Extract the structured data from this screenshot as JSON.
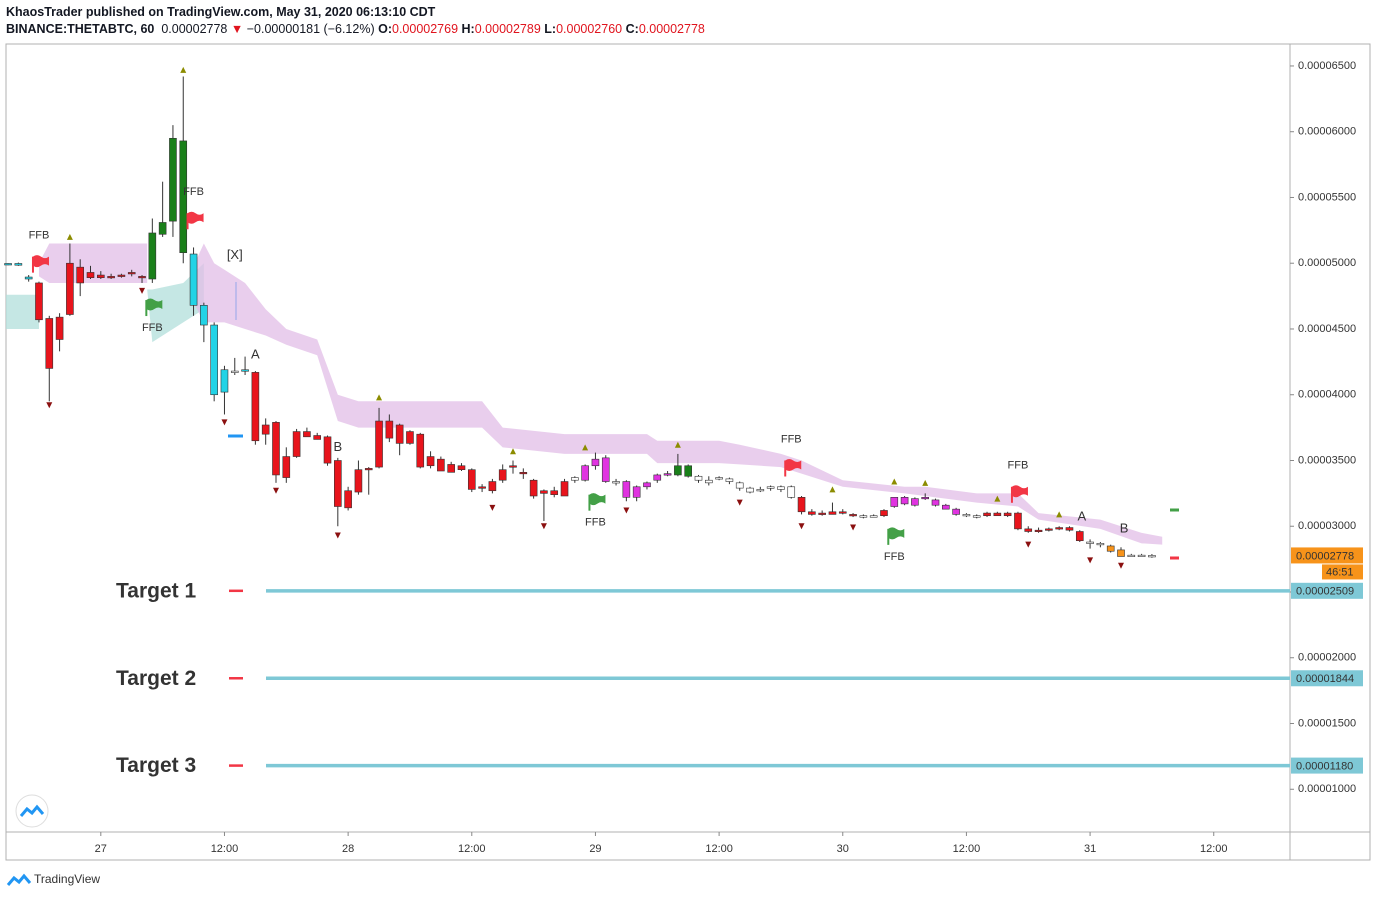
{
  "chart_data": {
    "type": "candlestick",
    "title": "KhaosTrader published on TradingView.com, May 31, 2020 06:13:10 CDT",
    "symbol": "BINANCE:THETABTC, 60",
    "last": 2.778e-05,
    "change_arrow": "▼",
    "change": "−0.00000181 (−6.12%)",
    "legend_ohlc": [
      {
        "label": "O:",
        "value": 2.769e-05
      },
      {
        "label": "H:",
        "value": 2.789e-05
      },
      {
        "label": "L:",
        "value": 2.76e-05,
        "value_label": "0.00002760"
      },
      {
        "label": "C:",
        "value": 2.778e-05
      }
    ],
    "countdown": "46:51",
    "last_color": "#f7931a",
    "brand": "TradingView",
    "xlim": [
      -9.2,
      115.4
    ],
    "xticks": [
      {
        "value": 0,
        "label": "27"
      },
      {
        "value": 12,
        "label": "12:00"
      },
      {
        "value": 24,
        "label": "28"
      },
      {
        "value": 36,
        "label": "12:00"
      },
      {
        "value": 48,
        "label": "29"
      },
      {
        "value": 60,
        "label": "12:00"
      },
      {
        "value": 72,
        "label": "30"
      },
      {
        "value": 84,
        "label": "12:00"
      },
      {
        "value": 96,
        "label": "31"
      },
      {
        "value": 108,
        "label": "12:00"
      }
    ],
    "ylim": [
      6.75e-06,
      6.667e-05
    ],
    "yticks": [
      {
        "value": 6.5e-05,
        "label": "0.00006500"
      },
      {
        "value": 6e-05,
        "label": "0.00006000"
      },
      {
        "value": 5.5e-05,
        "label": "0.00005500"
      },
      {
        "value": 5e-05,
        "label": "0.00005000"
      },
      {
        "value": 4.5e-05,
        "label": "0.00004500"
      },
      {
        "value": 4e-05,
        "label": "0.00004000"
      },
      {
        "value": 3.5e-05,
        "label": "0.00003500"
      },
      {
        "value": 3e-05,
        "label": "0.00003000"
      },
      {
        "value": 2.5e-05,
        "label": "0.00002500"
      },
      {
        "value": 2e-05,
        "label": "0.00002000"
      },
      {
        "value": 1.5e-05,
        "label": "0.00001500"
      },
      {
        "value": 1e-05,
        "label": "0.00001000"
      }
    ],
    "x": [
      -9,
      -8,
      -7,
      -6,
      -5,
      -4,
      -3,
      -2,
      -1,
      0,
      1,
      2,
      3,
      4,
      5,
      6,
      7,
      8,
      9,
      10,
      11,
      12,
      13,
      14,
      15,
      16,
      17,
      18,
      19,
      20,
      21,
      22,
      23,
      24,
      25,
      26,
      27,
      28,
      29,
      30,
      31,
      32,
      33,
      34,
      35,
      36,
      37,
      38,
      39,
      40,
      41,
      42,
      43,
      44,
      45,
      46,
      47,
      48,
      49,
      50,
      51,
      52,
      53,
      54,
      55,
      56,
      57,
      58,
      59,
      60,
      61,
      62,
      63,
      64,
      65,
      66,
      67,
      68,
      69,
      70,
      71,
      72,
      73,
      74,
      75,
      76,
      77,
      78,
      79,
      80,
      81,
      82,
      83,
      84,
      85,
      86,
      87,
      88,
      89,
      90,
      91,
      92,
      93,
      94,
      95,
      96,
      97,
      98,
      99,
      100,
      101,
      102
    ],
    "open": [
      4.99e-05,
      4.985e-05,
      4.88e-05,
      4.85e-05,
      4.58e-05,
      4.59e-05,
      5e-05,
      4.97e-05,
      4.93e-05,
      4.91e-05,
      4.9e-05,
      4.91e-05,
      4.93e-05,
      4.9e-05,
      4.88e-05,
      5.22e-05,
      5.32e-05,
      5.93e-05,
      5.07e-05,
      4.68e-05,
      4.53e-05,
      4.19e-05,
      4.18e-05,
      4.19e-05,
      4.17e-05,
      3.77e-05,
      3.79e-05,
      3.53e-05,
      3.72e-05,
      3.72e-05,
      3.69e-05,
      3.68e-05,
      3.5e-05,
      3.27e-05,
      3.43e-05,
      3.43e-05,
      3.8e-05,
      3.8e-05,
      3.77e-05,
      3.72e-05,
      3.7e-05,
      3.53e-05,
      3.51e-05,
      3.47e-05,
      3.46e-05,
      3.43e-05,
      3.3e-05,
      3.34e-05,
      3.43e-05,
      3.46e-05,
      3.41e-05,
      3.35e-05,
      3.27e-05,
      3.27e-05,
      3.34e-05,
      3.35e-05,
      3.35e-05,
      3.46e-05,
      3.52e-05,
      3.33e-05,
      3.34e-05,
      3.22e-05,
      3.3e-05,
      3.35e-05,
      3.4e-05,
      3.39e-05,
      3.46e-05,
      3.38e-05,
      3.35e-05,
      3.36e-05,
      3.36e-05,
      3.33e-05,
      3.29e-05,
      3.28e-05,
      3.29e-05,
      3.3e-05,
      3.3e-05,
      3.22e-05,
      3.11e-05,
      3.1e-05,
      3.11e-05,
      3.11e-05,
      3.09e-05,
      3.07e-05,
      3.08e-05,
      3.12e-05,
      3.15e-05,
      3.17e-05,
      3.16e-05,
      3.22e-05,
      3.2e-05,
      3.16e-05,
      3.13e-05,
      3.09e-05,
      3.08e-05,
      3.1e-05,
      3.1e-05,
      3.1e-05,
      3.1e-05,
      2.98e-05,
      2.97e-05,
      2.98e-05,
      2.99e-05,
      2.99e-05,
      2.96e-05,
      2.88e-05,
      2.87e-05,
      2.85e-05,
      2.82e-05,
      2.78e-05,
      2.78e-05,
      2.769e-05
    ],
    "high": [
      5e-05,
      5.005e-05,
      4.91e-05,
      4.86e-05,
      4.6e-05,
      4.62e-05,
      5.15e-05,
      5.03e-05,
      4.98e-05,
      4.94e-05,
      4.92e-05,
      4.92e-05,
      4.95e-05,
      4.91e-05,
      5.34e-05,
      5.62e-05,
      6.05e-05,
      6.42e-05,
      5.12e-05,
      4.7e-05,
      4.55e-05,
      4.22e-05,
      4.28e-05,
      4.29e-05,
      4.18e-05,
      3.82e-05,
      3.8e-05,
      3.6e-05,
      3.74e-05,
      3.75e-05,
      3.71e-05,
      3.69e-05,
      3.52e-05,
      3.3e-05,
      3.5e-05,
      3.45e-05,
      3.9e-05,
      3.85e-05,
      3.78e-05,
      3.73e-05,
      3.71e-05,
      3.57e-05,
      3.53e-05,
      3.49e-05,
      3.48e-05,
      3.44e-05,
      3.32e-05,
      3.36e-05,
      3.47e-05,
      3.5e-05,
      3.44e-05,
      3.36e-05,
      3.28e-05,
      3.3e-05,
      3.36e-05,
      3.38e-05,
      3.47e-05,
      3.56e-05,
      3.54e-05,
      3.36e-05,
      3.35e-05,
      3.31e-05,
      3.34e-05,
      3.4e-05,
      3.42e-05,
      3.55e-05,
      3.47e-05,
      3.39e-05,
      3.38e-05,
      3.38e-05,
      3.37e-05,
      3.34e-05,
      3.3e-05,
      3.3e-05,
      3.31e-05,
      3.31e-05,
      3.31e-05,
      3.23e-05,
      3.13e-05,
      3.12e-05,
      3.18e-05,
      3.13e-05,
      3.1e-05,
      3.09e-05,
      3.09e-05,
      3.13e-05,
      3.22e-05,
      3.23e-05,
      3.22e-05,
      3.25e-05,
      3.21e-05,
      3.17e-05,
      3.14e-05,
      3.1e-05,
      3.09e-05,
      3.11e-05,
      3.11e-05,
      3.11e-05,
      3.11e-05,
      3e-05,
      2.99e-05,
      2.99e-05,
      3e-05,
      3e-05,
      2.97e-05,
      2.9e-05,
      2.88e-05,
      2.86e-05,
      2.84e-05,
      2.79e-05,
      2.79e-05,
      2.789e-05
    ],
    "low": [
      4.985e-05,
      4.98e-05,
      4.86e-05,
      4.55e-05,
      3.95e-05,
      4.33e-05,
      4.6e-05,
      4.75e-05,
      4.88e-05,
      4.88e-05,
      4.88e-05,
      4.89e-05,
      4.9e-05,
      4.85e-05,
      4.85e-05,
      5.2e-05,
      5.2e-05,
      5e-05,
      4.6e-05,
      4.4e-05,
      3.95e-05,
      3.85e-05,
      4.15e-05,
      4.15e-05,
      3.62e-05,
      3.62e-05,
      3.33e-05,
      3.33e-05,
      3.52e-05,
      3.68e-05,
      3.66e-05,
      3.46e-05,
      3e-05,
      3.12e-05,
      3.24e-05,
      3.24e-05,
      3.44e-05,
      3.64e-05,
      3.54e-05,
      3.62e-05,
      3.44e-05,
      3.44e-05,
      3.42e-05,
      3.41e-05,
      3.42e-05,
      3.26e-05,
      3.26e-05,
      3.25e-05,
      3.33e-05,
      3.4e-05,
      3.36e-05,
      3.21e-05,
      3.04e-05,
      3.22e-05,
      3.23e-05,
      3.33e-05,
      3.34e-05,
      3.43e-05,
      3.33e-05,
      3.31e-05,
      3.19e-05,
      3.19e-05,
      3.28e-05,
      3.33e-05,
      3.38e-05,
      3.38e-05,
      3.37e-05,
      3.33e-05,
      3.31e-05,
      3.35e-05,
      3.32e-05,
      3.27e-05,
      3.25e-05,
      3.26e-05,
      3.27e-05,
      3.26e-05,
      3.21e-05,
      3.09e-05,
      3.08e-05,
      3.08e-05,
      3.09e-05,
      3.09e-05,
      3.07e-05,
      3.06e-05,
      3.07e-05,
      3.07e-05,
      3.14e-05,
      3.16e-05,
      3.15e-05,
      3.2e-05,
      3.15e-05,
      3.13e-05,
      3.08e-05,
      3.07e-05,
      3.06e-05,
      3.07e-05,
      3.08e-05,
      3.07e-05,
      2.97e-05,
      2.95e-05,
      2.95e-05,
      2.96e-05,
      2.97e-05,
      2.96e-05,
      2.88e-05,
      2.83e-05,
      2.84e-05,
      2.8e-05,
      2.77e-05,
      2.77e-05,
      2.77e-05,
      2.76e-05
    ],
    "close": [
      4.998e-05,
      4.998e-05,
      4.895e-05,
      4.57e-05,
      4.2e-05,
      4.42e-05,
      4.61e-05,
      4.85e-05,
      4.89e-05,
      4.89e-05,
      4.9e-05,
      4.9e-05,
      4.92e-05,
      4.89e-05,
      5.23e-05,
      5.31e-05,
      5.95e-05,
      5.08e-05,
      4.68e-05,
      4.53e-05,
      4e-05,
      4.02e-05,
      4.17e-05,
      4.18e-05,
      3.65e-05,
      3.7e-05,
      3.39e-05,
      3.37e-05,
      3.53e-05,
      3.68e-05,
      3.66e-05,
      3.48e-05,
      3.15e-05,
      3.14e-05,
      3.26e-05,
      3.44e-05,
      3.45e-05,
      3.67e-05,
      3.63e-05,
      3.63e-05,
      3.45e-05,
      3.46e-05,
      3.42e-05,
      3.41e-05,
      3.43e-05,
      3.28e-05,
      3.29e-05,
      3.27e-05,
      3.35e-05,
      3.45e-05,
      3.4e-05,
      3.23e-05,
      3.25e-05,
      3.24e-05,
      3.23e-05,
      3.37e-05,
      3.46e-05,
      3.51e-05,
      3.34e-05,
      3.34e-05,
      3.22e-05,
      3.3e-05,
      3.33e-05,
      3.39e-05,
      3.4e-05,
      3.46e-05,
      3.38e-05,
      3.35e-05,
      3.33e-05,
      3.37e-05,
      3.34e-05,
      3.29e-05,
      3.26e-05,
      3.27e-05,
      3.3e-05,
      3.28e-05,
      3.22e-05,
      3.11e-05,
      3.09e-05,
      3.1e-05,
      3.09e-05,
      3.1e-05,
      3.08e-05,
      3.08e-05,
      3.08e-05,
      3.08e-05,
      3.22e-05,
      3.22e-05,
      3.21e-05,
      3.21e-05,
      3.16e-05,
      3.13e-05,
      3.09e-05,
      3.08e-05,
      3.07e-05,
      3.08e-05,
      3.08e-05,
      3.08e-05,
      2.98e-05,
      2.96e-05,
      2.96e-05,
      2.97e-05,
      2.98e-05,
      2.97e-05,
      2.89e-05,
      2.87e-05,
      2.86e-05,
      2.81e-05,
      2.77e-05,
      2.78e-05,
      2.78e-05,
      2.778e-05
    ],
    "colors": [
      "#22d3e6",
      "#22d3e6",
      "#22d3e6",
      "#e8141c",
      "#e8141c",
      "#e8141c",
      "#e8141c",
      "#e8141c",
      "#e8141c",
      "#e8141c",
      "#e8141c",
      "#e8141c",
      "#e8141c",
      "#e8141c",
      "#1a801a",
      "#1a801a",
      "#1a801a",
      "#1a801a",
      "#22d3e6",
      "#22d3e6",
      "#22d3e6",
      "#22d3e6",
      "#ffffff",
      "#22d3e6",
      "#e8141c",
      "#e8141c",
      "#e8141c",
      "#e8141c",
      "#e8141c",
      "#e8141c",
      "#e8141c",
      "#e8141c",
      "#e8141c",
      "#e8141c",
      "#e8141c",
      "#e8141c",
      "#e8141c",
      "#e8141c",
      "#e8141c",
      "#e8141c",
      "#e8141c",
      "#e8141c",
      "#e8141c",
      "#e8141c",
      "#e8141c",
      "#e8141c",
      "#e8141c",
      "#e8141c",
      "#e8141c",
      "#e8141c",
      "#e8141c",
      "#e8141c",
      "#e8141c",
      "#e8141c",
      "#e8141c",
      "#ffffff",
      "#e033e0",
      "#e033e0",
      "#e033e0",
      "#ffffff",
      "#e033e0",
      "#e033e0",
      "#e033e0",
      "#e033e0",
      "#e033e0",
      "#1a801a",
      "#1a801a",
      "#ffffff",
      "#ffffff",
      "#ffffff",
      "#ffffff",
      "#ffffff",
      "#ffffff",
      "#ffffff",
      "#ffffff",
      "#ffffff",
      "#ffffff",
      "#e8141c",
      "#e8141c",
      "#e8141c",
      "#e8141c",
      "#e8141c",
      "#e8141c",
      "#ffffff",
      "#ffffff",
      "#e8141c",
      "#e033e0",
      "#e033e0",
      "#e033e0",
      "#e033e0",
      "#e033e0",
      "#e033e0",
      "#e033e0",
      "#ffffff",
      "#ffffff",
      "#e8141c",
      "#e8141c",
      "#e8141c",
      "#e8141c",
      "#e8141c",
      "#e8141c",
      "#e8141c",
      "#e8141c",
      "#e8141c",
      "#e8141c",
      "#ffffff",
      "#ffffff",
      "#f7931a",
      "#f7931a",
      "#ffffff",
      "#ffffff",
      "#ffffff"
    ],
    "clouds": [
      {
        "color": "#b2dfdb",
        "x": [
          -9.2,
          -6
        ],
        "upper": [
          4.76e-05,
          4.76e-05
        ],
        "lower": [
          4.5e-05,
          4.5e-05
        ]
      },
      {
        "color": "#e1bee7",
        "x": [
          -6,
          -5,
          -3.5,
          4.5
        ],
        "upper": [
          5e-05,
          5.15e-05,
          5.15e-05,
          5.15e-05
        ],
        "lower": [
          4.9e-05,
          4.85e-05,
          4.85e-05,
          4.85e-05
        ]
      },
      {
        "color": "#b2dfdb",
        "x": [
          4.5,
          5,
          8,
          10
        ],
        "upper": [
          4.8e-05,
          4.8e-05,
          4.85e-05,
          5e-05
        ],
        "lower": [
          4.8e-05,
          4.4e-05,
          4.55e-05,
          4.65e-05
        ]
      },
      {
        "color": "#e1bee7",
        "x": [
          9,
          10,
          11,
          12,
          14,
          16,
          18,
          21,
          23,
          25,
          28,
          37,
          39,
          45,
          53,
          54,
          60,
          62,
          66,
          68,
          72,
          78,
          80,
          85,
          89,
          91,
          97,
          101,
          103
        ],
        "upper": [
          4.98e-05,
          5.15e-05,
          5e-05,
          4.95e-05,
          4.85e-05,
          4.65e-05,
          4.5e-05,
          4.42e-05,
          4e-05,
          3.95e-05,
          3.95e-05,
          3.95e-05,
          3.75e-05,
          3.7e-05,
          3.7e-05,
          3.65e-05,
          3.65e-05,
          3.62e-05,
          3.55e-05,
          3.5e-05,
          3.35e-05,
          3.3e-05,
          3.3e-05,
          3.25e-05,
          3.25e-05,
          3.1e-05,
          3.05e-05,
          2.95e-05,
          2.92e-05
        ],
        "lower": [
          4.7e-05,
          4.55e-05,
          4.55e-05,
          4.55e-05,
          4.5e-05,
          4.45e-05,
          4.38e-05,
          4.3e-05,
          3.8e-05,
          3.75e-05,
          3.75e-05,
          3.75e-05,
          3.6e-05,
          3.55e-05,
          3.55e-05,
          3.48e-05,
          3.48e-05,
          3.47e-05,
          3.45e-05,
          3.4e-05,
          3.3e-05,
          3.25e-05,
          3.23e-05,
          3.18e-05,
          3.15e-05,
          3.05e-05,
          2.98e-05,
          2.87e-05,
          2.86e-05
        ]
      }
    ],
    "up_markers": {
      "color": "#8c8c00",
      "x": [
        -3,
        8,
        27,
        40,
        47,
        56,
        71,
        77,
        80,
        87,
        93
      ],
      "values": [
        5.2e-05,
        6.47e-05,
        3.98e-05,
        3.57e-05,
        3.6e-05,
        3.62e-05,
        3.28e-05,
        3.34e-05,
        3.33e-05,
        3.21e-05,
        3.09e-05
      ]
    },
    "down_markers": {
      "color": "#8b1010",
      "x": [
        -5,
        4,
        12,
        17,
        23,
        38,
        43,
        51,
        62,
        68,
        73,
        90,
        96,
        99
      ],
      "values": [
        3.92e-05,
        4.79e-05,
        3.79e-05,
        3.27e-05,
        2.93e-05,
        3.14e-05,
        3e-05,
        3.12e-05,
        3.18e-05,
        3e-05,
        2.99e-05,
        2.86e-05,
        2.74e-05,
        2.7e-05
      ]
    },
    "flags": [
      {
        "label": "FFB",
        "x": -6,
        "y": 5.05e-05,
        "color": "#f23645",
        "side": "above"
      },
      {
        "label": "FFB",
        "x": 9,
        "y": 5.38e-05,
        "color": "#f23645",
        "side": "above"
      },
      {
        "label": "FFB",
        "x": 67,
        "y": 3.5e-05,
        "color": "#f23645",
        "side": "above"
      },
      {
        "label": "FFB",
        "x": 89,
        "y": 3.3e-05,
        "color": "#f23645",
        "side": "above"
      },
      {
        "label": "FFB",
        "x": 5,
        "y": 4.72e-05,
        "color": "#43a047",
        "side": "below"
      },
      {
        "label": "FFB",
        "x": 48,
        "y": 3.24e-05,
        "color": "#43a047",
        "side": "below"
      },
      {
        "label": "FFB",
        "x": 77,
        "y": 2.98e-05,
        "color": "#43a047",
        "side": "below"
      }
    ],
    "annotations": [
      {
        "text": "A",
        "x": 15,
        "y": 4.3e-05,
        "color": "#f07070"
      },
      {
        "text": "B",
        "x": 23,
        "y": 3.6e-05,
        "color": "#f07070"
      },
      {
        "text": "A",
        "x": 95.2,
        "y": 3.07e-05,
        "color": "#f07070"
      },
      {
        "text": "B",
        "x": 99.3,
        "y": 2.98e-05,
        "color": "#f07070"
      },
      {
        "text": "[X]",
        "x": 13,
        "y": 5.06e-05,
        "color": "#2196f3"
      }
    ],
    "targets": [
      {
        "name": "Target 1",
        "value": 2.509e-05
      },
      {
        "name": "Target 2",
        "value": 1.844e-05
      },
      {
        "name": "Target 3",
        "value": 1.18e-05,
        "value_label": "0.00001180"
      }
    ],
    "target_color": "#7ec8d6"
  }
}
